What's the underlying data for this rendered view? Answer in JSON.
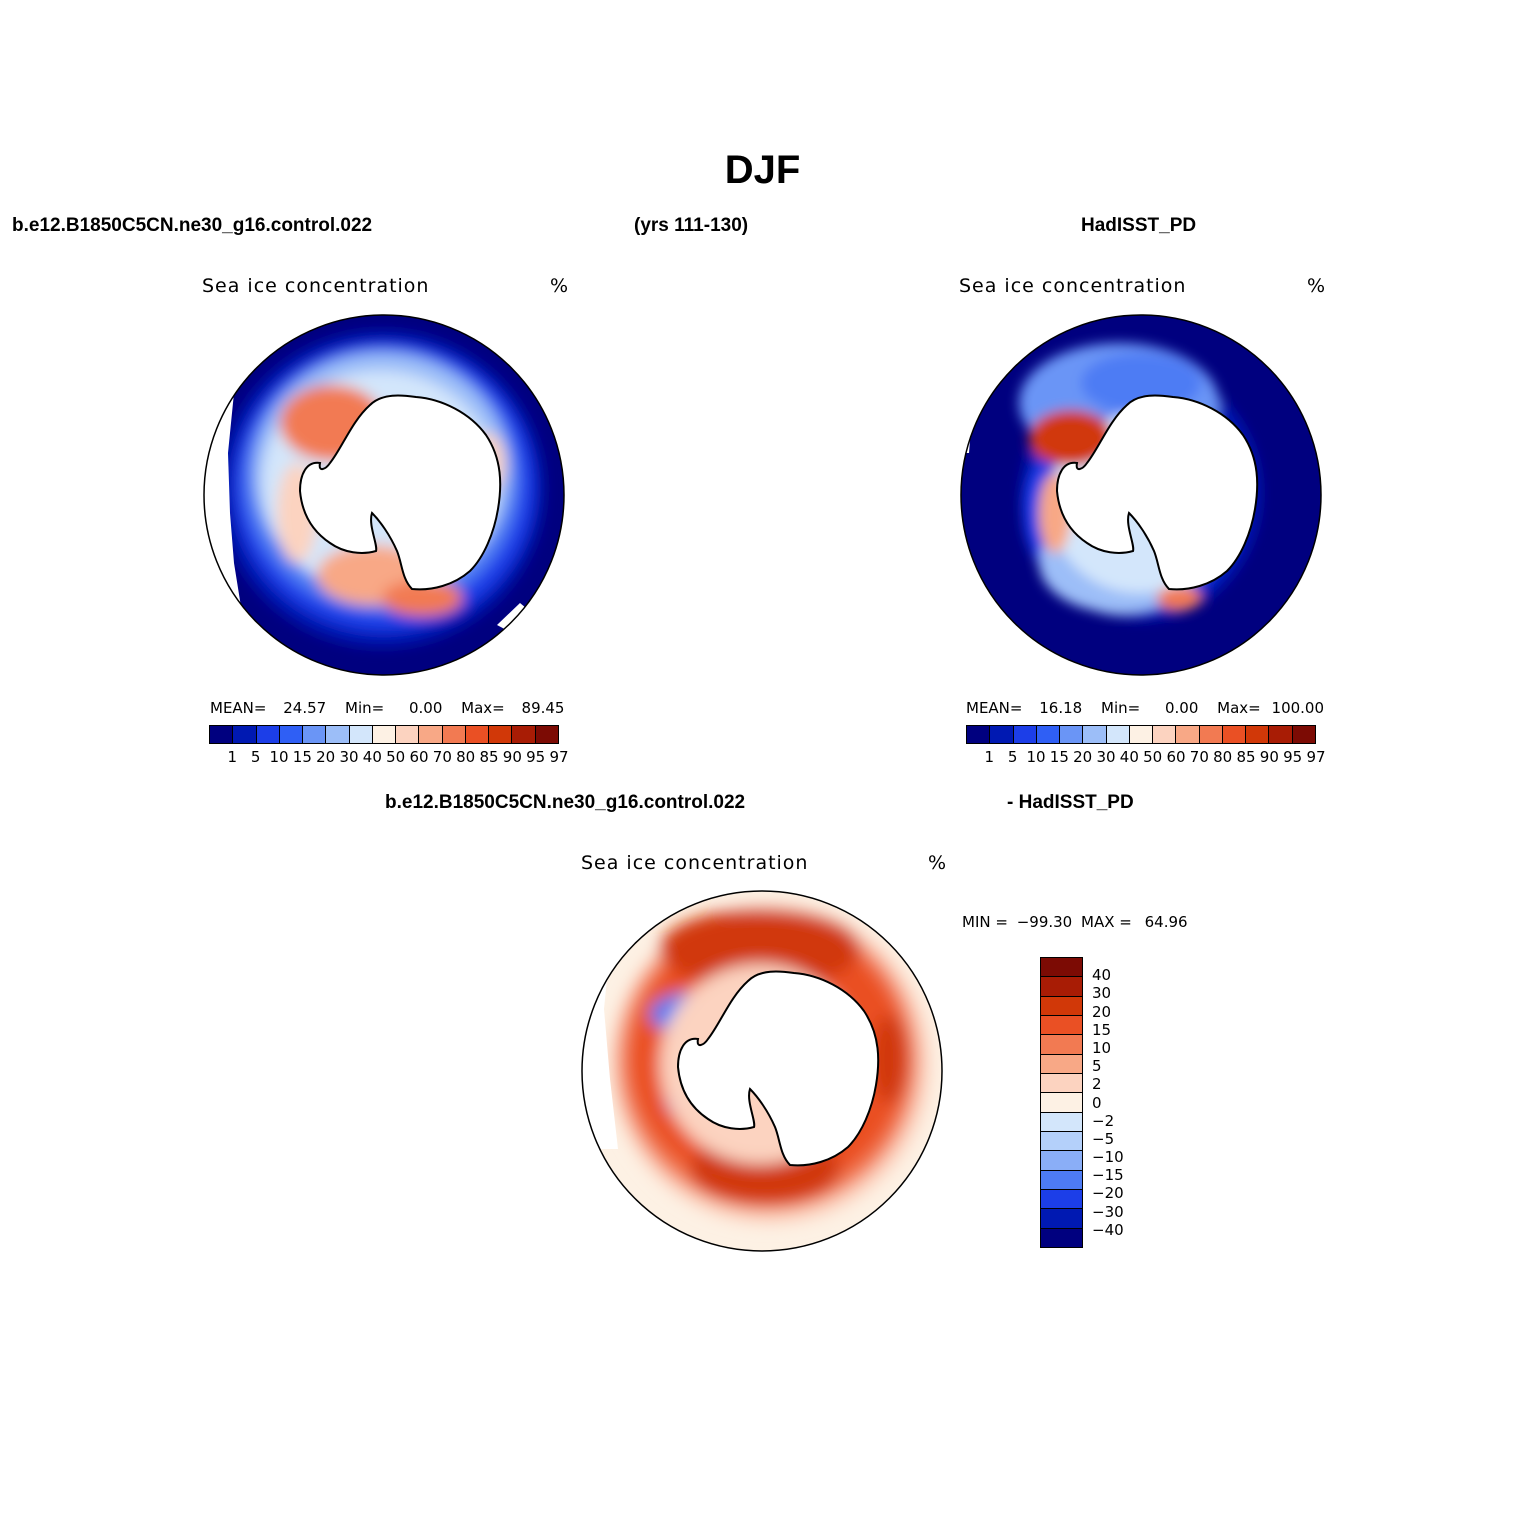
{
  "figure": {
    "title": "DJF",
    "case_name": "b.e12.B1850C5CN.ne30_g16.control.022",
    "years": "(yrs 111-130)",
    "obs_name": "HadISST_PD",
    "diff_case": "b.e12.B1850C5CN.ne30_g16.control.022",
    "diff_obs": "- HadISST_PD"
  },
  "panels": {
    "model": {
      "title": "Sea ice concentration",
      "units": "%",
      "stats": {
        "mean_label": "MEAN=",
        "mean": "24.57",
        "min_label": "Min=",
        "min": "0.00",
        "max_label": "Max=",
        "max": "89.45"
      }
    },
    "obs": {
      "title": "Sea ice concentration",
      "units": "%",
      "stats": {
        "mean_label": "MEAN=",
        "mean": "16.18",
        "min_label": "Min=",
        "min": "0.00",
        "max_label": "Max=",
        "max": "100.00"
      }
    },
    "diff": {
      "title": "Sea ice concentration",
      "units": "%",
      "stats": {
        "min_label": "MIN =",
        "min": "−99.30",
        "max_label": "MAX =",
        "max": "64.96"
      }
    }
  },
  "colorbars": {
    "abs": {
      "labels": [
        "1",
        "5",
        "10",
        "15",
        "20",
        "30",
        "40",
        "50",
        "60",
        "70",
        "80",
        "85",
        "90",
        "95",
        "97"
      ],
      "colors": [
        "#00007f",
        "#0019b2",
        "#1c3ee8",
        "#2f5ff5",
        "#6a95f6",
        "#9cbef8",
        "#d3e6fb",
        "#fdf1e4",
        "#fcd3c0",
        "#f8a886",
        "#f27a52",
        "#ea5024",
        "#d13808",
        "#a81c05",
        "#7c0b04"
      ]
    },
    "diff": {
      "labels": [
        "40",
        "30",
        "20",
        "15",
        "10",
        "5",
        "2",
        "0",
        "−2",
        "−5",
        "−10",
        "−15",
        "−20",
        "−30",
        "−40"
      ],
      "colors": [
        "#7c0b04",
        "#a81c05",
        "#d13808",
        "#ea5024",
        "#f27a52",
        "#f8a886",
        "#fcd3c0",
        "#fdf1e4",
        "#d3e6fb",
        "#b4d0fa",
        "#8aaef7",
        "#4d7bf4",
        "#1c3ee8",
        "#0019b2",
        "#00007f"
      ]
    }
  }
}
